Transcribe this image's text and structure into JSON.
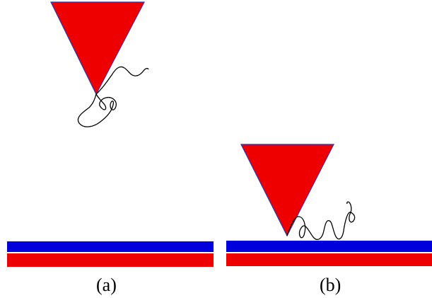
{
  "panels": [
    {
      "label": "(a)"
    },
    {
      "label": "(b)"
    }
  ],
  "colors": {
    "tip_fill": "#ee0000",
    "tip_edge": "#3333aa",
    "top_layer": "#0000dd",
    "bottom_layer": "#ee0000",
    "molecule": "#000000"
  }
}
